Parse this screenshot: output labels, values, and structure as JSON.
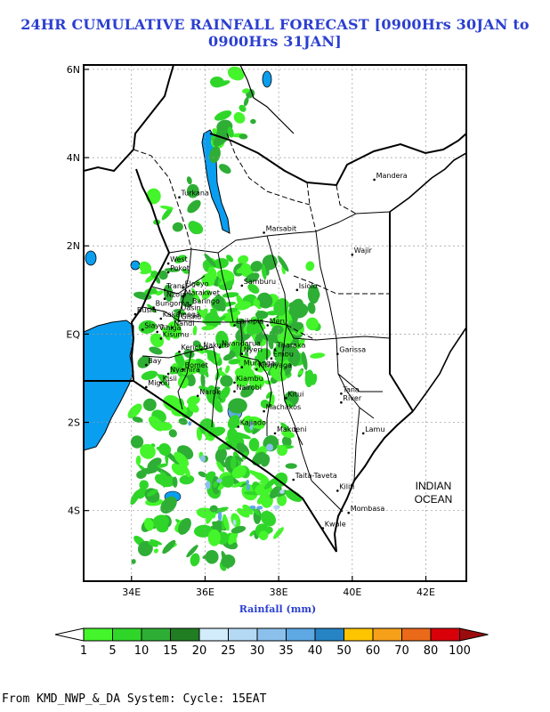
{
  "title": "24HR CUMULATIVE RAINFALL FORECAST [0900Hrs 30JAN to 0900Hrs 31JAN]",
  "xaxis": {
    "label": "Rainfall (mm)",
    "ticks": [
      "34E",
      "36E",
      "38E",
      "40E",
      "42E"
    ]
  },
  "yaxis": {
    "ticks": [
      "6N",
      "4N",
      "2N",
      "EQ",
      "2S",
      "4S"
    ]
  },
  "ocean_label": [
    "INDIAN",
    "OCEAN"
  ],
  "places": [
    {
      "name": "Turkana",
      "lon": 35.3,
      "lat": 3.1
    },
    {
      "name": "Mandera",
      "lon": 40.6,
      "lat": 3.5
    },
    {
      "name": "Marsabit",
      "lon": 37.6,
      "lat": 2.3
    },
    {
      "name": "Wajir",
      "lon": 40.0,
      "lat": 1.8
    },
    {
      "name": "West",
      "lon": 35.0,
      "lat": 1.6
    },
    {
      "name": "Pokot",
      "lon": 35.0,
      "lat": 1.4
    },
    {
      "name": "Samburu",
      "lon": 37.0,
      "lat": 1.1
    },
    {
      "name": "Elgeyo",
      "lon": 35.4,
      "lat": 1.05
    },
    {
      "name": "Marakwet",
      "lon": 35.4,
      "lat": 0.85
    },
    {
      "name": "Isiolo",
      "lon": 38.5,
      "lat": 1.0
    },
    {
      "name": "Baringo",
      "lon": 35.6,
      "lat": 0.65
    },
    {
      "name": "Laikipia",
      "lon": 36.8,
      "lat": 0.2
    },
    {
      "name": "Meru",
      "lon": 37.7,
      "lat": 0.2
    },
    {
      "name": "Garissa",
      "lon": 39.6,
      "lat": -0.45
    },
    {
      "name": "Tharaka",
      "lon": 37.9,
      "lat": -0.35
    },
    {
      "name": "Embu",
      "lon": 37.8,
      "lat": -0.55
    },
    {
      "name": "Kirinyaga",
      "lon": 37.4,
      "lat": -0.8
    },
    {
      "name": "Narok",
      "lon": 35.8,
      "lat": -1.4
    },
    {
      "name": "Kitui",
      "lon": 38.2,
      "lat": -1.45
    },
    {
      "name": "Tana",
      "lon": 39.7,
      "lat": -1.35
    },
    {
      "name": "River",
      "lon": 39.7,
      "lat": -1.55
    },
    {
      "name": "Machakos",
      "lon": 37.6,
      "lat": -1.75
    },
    {
      "name": "Kajiado",
      "lon": 36.9,
      "lat": -2.1
    },
    {
      "name": "Makueni",
      "lon": 37.9,
      "lat": -2.25
    },
    {
      "name": "Lamu",
      "lon": 40.3,
      "lat": -2.25
    },
    {
      "name": "Taita-Taveta",
      "lon": 38.4,
      "lat": -3.3
    },
    {
      "name": "Kilifi",
      "lon": 39.6,
      "lat": -3.55
    },
    {
      "name": "Mombasa",
      "lon": 39.9,
      "lat": -4.05
    },
    {
      "name": "Kwale",
      "lon": 39.2,
      "lat": -4.4
    },
    {
      "name": "Nakuru",
      "lon": 35.9,
      "lat": -0.35
    },
    {
      "name": "Nyandarua",
      "lon": 36.4,
      "lat": -0.3
    },
    {
      "name": "Nyeri",
      "lon": 37.0,
      "lat": -0.45
    },
    {
      "name": "Muranga",
      "lon": 37.0,
      "lat": -0.75
    },
    {
      "name": "Kiambu",
      "lon": 36.8,
      "lat": -1.1
    },
    {
      "name": "Nairobi",
      "lon": 36.8,
      "lat": -1.3
    },
    {
      "name": "Bomet",
      "lon": 35.4,
      "lat": -0.8
    },
    {
      "name": "Kisii",
      "lon": 34.8,
      "lat": -1.1
    },
    {
      "name": "Kericho",
      "lon": 35.3,
      "lat": -0.4
    },
    {
      "name": "Nandi",
      "lon": 35.1,
      "lat": 0.15
    },
    {
      "name": "Kisumu",
      "lon": 34.8,
      "lat": -0.1
    },
    {
      "name": "Nyamira",
      "lon": 35.0,
      "lat": -0.9
    },
    {
      "name": "Migori",
      "lon": 34.4,
      "lat": -1.2
    },
    {
      "name": "Bay",
      "lon": 34.4,
      "lat": -0.7
    },
    {
      "name": "Siaya",
      "lon": 34.3,
      "lat": 0.1
    },
    {
      "name": "Busia",
      "lon": 34.1,
      "lat": 0.45
    },
    {
      "name": "Bungoma",
      "lon": 34.6,
      "lat": 0.6
    },
    {
      "name": "Kakamega",
      "lon": 34.8,
      "lat": 0.35
    },
    {
      "name": "Vihiga",
      "lon": 34.7,
      "lat": 0.05
    },
    {
      "name": "Uasin",
      "lon": 35.3,
      "lat": 0.5
    },
    {
      "name": "Gishu",
      "lon": 35.3,
      "lat": 0.3
    },
    {
      "name": "Trans",
      "lon": 34.9,
      "lat": 1.0
    },
    {
      "name": "Nzoia",
      "lon": 34.9,
      "lat": 0.8
    }
  ],
  "legend": {
    "labels": [
      "1",
      "5",
      "10",
      "15",
      "20",
      "25",
      "30",
      "35",
      "40",
      "50",
      "60",
      "70",
      "80",
      "100"
    ],
    "colors": [
      "#ffffff",
      "#43f52a",
      "#2fd629",
      "#2eae35",
      "#217d22",
      "#d3ecfb",
      "#b4d9f5",
      "#8cc0ec",
      "#5ea8e3",
      "#2683c4",
      "#fdc500",
      "#f6a01a",
      "#ea6a1a",
      "#d9000a",
      "#9d0c0d"
    ]
  },
  "footer": "From KMD_NWP_&_DA System: Cycle: 15EAT"
}
